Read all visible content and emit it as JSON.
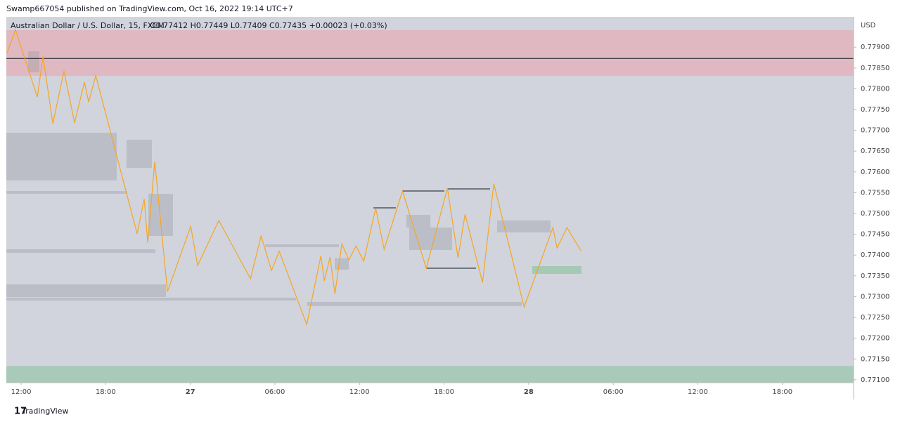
{
  "header": "Swamp667054 published on TradingView.com, Oct 16, 2022 19:14 UTC+7",
  "footer": "TradingView",
  "chart_data": {
    "type": "line",
    "title": "Australian Dollar / U.S. Dollar, 15, FXCM",
    "subtitle": "O0.77412 H0.77449 L0.77409 C0.77435 +0.00023 (+0.03%)",
    "y_label": "USD",
    "x": [
      11.0,
      11.6,
      13.15,
      13.55,
      14.25,
      15.04,
      15.79,
      16.49,
      16.79,
      17.29,
      20.23,
      20.73,
      20.98,
      21.48,
      22.38,
      24.03,
      24.52,
      26.02,
      28.27,
      29.02,
      29.76,
      30.31,
      32.26,
      33.26,
      33.51,
      33.91,
      34.26,
      34.75,
      35.25,
      35.75,
      36.3,
      37.15,
      37.75,
      39.05,
      40.74,
      42.24,
      42.99,
      43.49,
      44.73,
      45.53,
      47.68,
      49.72,
      50.02,
      50.72,
      51.72
    ],
    "series": [
      {
        "name": "AUDUSD",
        "color": "#f5a623",
        "values": [
          0.77886,
          0.77942,
          0.7778,
          0.77878,
          0.77716,
          0.77843,
          0.77718,
          0.77816,
          0.77768,
          0.77832,
          0.77451,
          0.77535,
          0.7743,
          0.77625,
          0.77312,
          0.77469,
          0.77375,
          0.77483,
          0.77343,
          0.77446,
          0.77363,
          0.77409,
          0.77233,
          0.77398,
          0.77338,
          0.77395,
          0.77307,
          0.77427,
          0.77388,
          0.77422,
          0.77385,
          0.77513,
          0.77414,
          0.77554,
          0.77368,
          0.77561,
          0.77393,
          0.77498,
          0.77334,
          0.77572,
          0.77275,
          0.77466,
          0.77417,
          0.77466,
          0.7741
        ]
      }
    ],
    "zones": [
      {
        "from": 0.77831,
        "to": 0.77941,
        "color": "rgba(242,150,160,0.45)"
      },
      {
        "from": 0.77093,
        "to": 0.77133,
        "color": "rgba(120,190,140,0.45)"
      }
    ],
    "levels": [
      {
        "value": 0.77873,
        "color": "#131722"
      }
    ],
    "xlim": [
      10.95,
      71.05
    ],
    "xticks": [
      {
        "value": 12,
        "label": "12:00"
      },
      {
        "value": 18,
        "label": "18:00"
      },
      {
        "value": 24,
        "label": "27"
      },
      {
        "value": 30,
        "label": "06:00"
      },
      {
        "value": 36,
        "label": "12:00"
      },
      {
        "value": 42,
        "label": "18:00"
      },
      {
        "value": 48,
        "label": "28"
      },
      {
        "value": 54,
        "label": "06:00"
      },
      {
        "value": 60,
        "label": "12:00"
      },
      {
        "value": 66,
        "label": "18:00"
      }
    ],
    "ylim": [
      0.77093,
      0.77973
    ],
    "yticks": [
      {
        "value": 0.771,
        "label": "0.77100"
      },
      {
        "value": 0.7715,
        "label": "0.77150"
      },
      {
        "value": 0.772,
        "label": "0.77200"
      },
      {
        "value": 0.7725,
        "label": "0.77250"
      },
      {
        "value": 0.773,
        "label": "0.77300"
      },
      {
        "value": 0.7735,
        "label": "0.77350"
      },
      {
        "value": 0.774,
        "label": "0.77400"
      },
      {
        "value": 0.7745,
        "label": "0.77450"
      },
      {
        "value": 0.775,
        "label": "0.77500"
      },
      {
        "value": 0.7755,
        "label": "0.77550"
      },
      {
        "value": 0.776,
        "label": "0.77600"
      },
      {
        "value": 0.7765,
        "label": "0.77650"
      },
      {
        "value": 0.777,
        "label": "0.77700"
      },
      {
        "value": 0.7775,
        "label": "0.77750"
      },
      {
        "value": 0.778,
        "label": "0.77800"
      },
      {
        "value": 0.7785,
        "label": "0.77850"
      },
      {
        "value": 0.779,
        "label": "0.77900"
      }
    ],
    "grid": false
  }
}
